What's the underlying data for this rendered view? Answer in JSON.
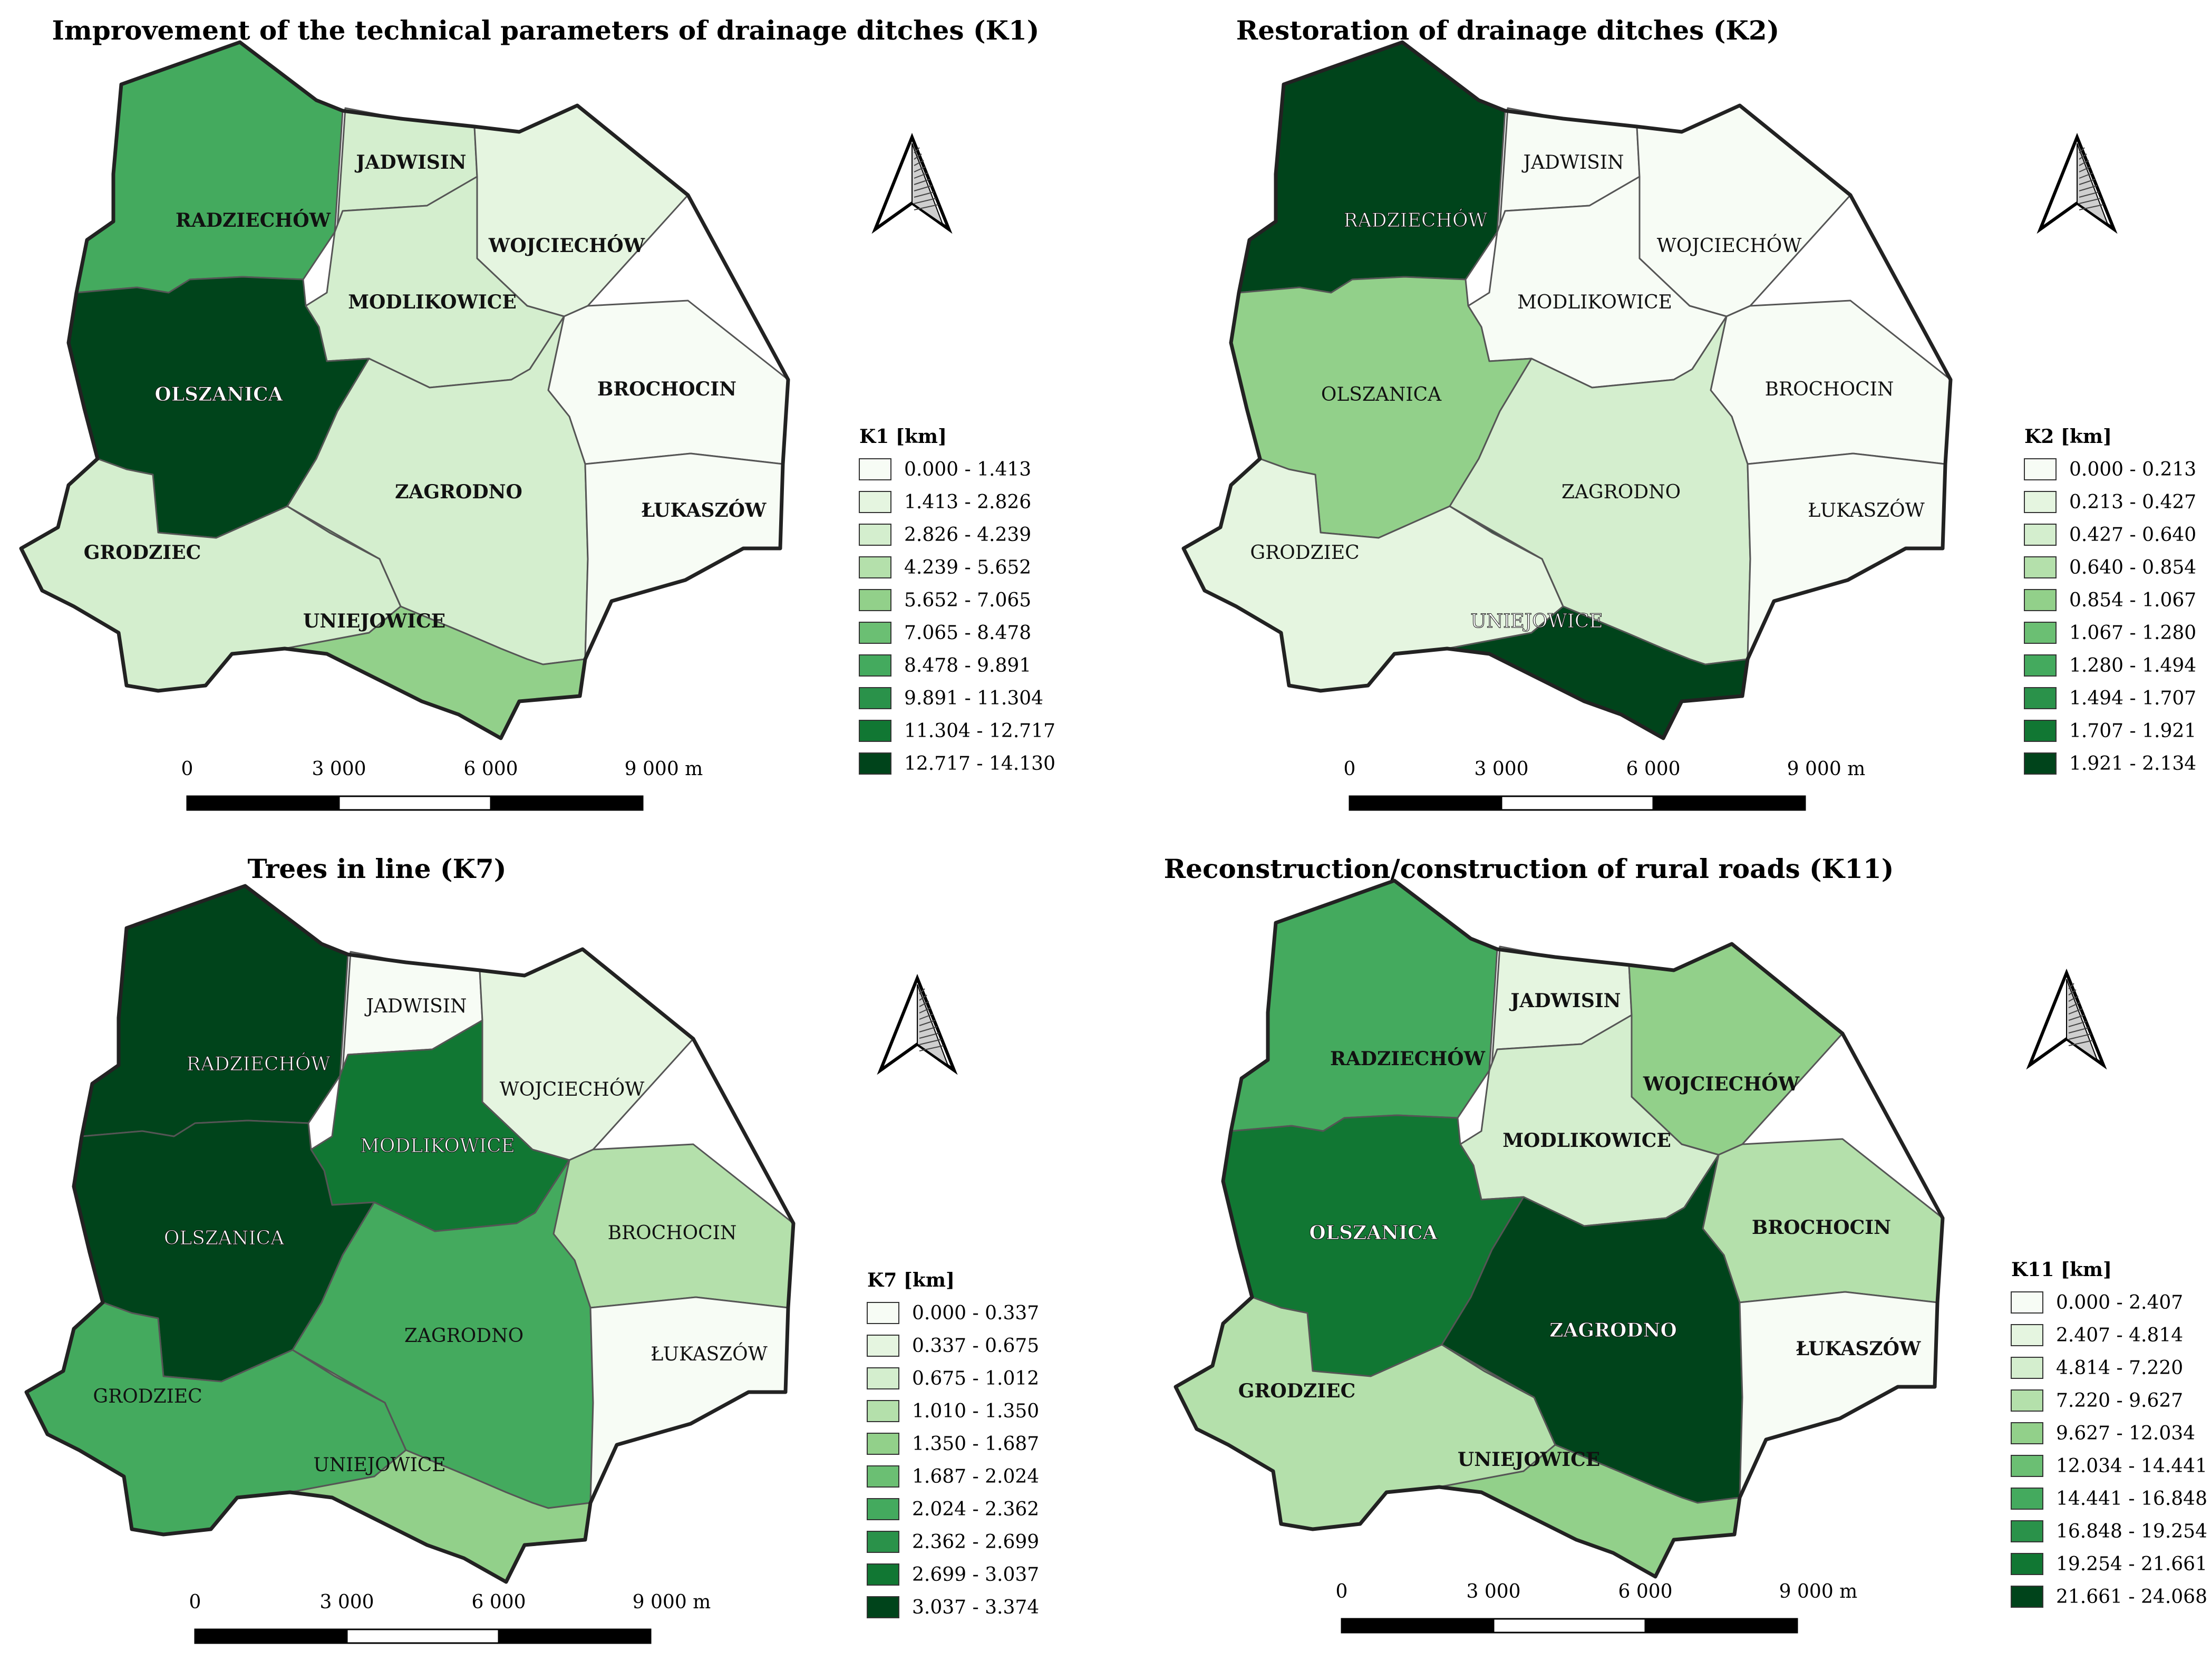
{
  "panels": [
    {
      "id": "k1",
      "title": "Improvement of the technical parameters of drainage ditches (K1)",
      "legend_title": "K1 [km]",
      "classes": [
        "0.000 - 1.413",
        "1.413 - 2.826",
        "2.826 - 4.239",
        "4.239 - 5.652",
        "5.652 - 7.065",
        "7.065 - 8.478",
        "8.478 - 9.891",
        "9.891 - 11.304",
        "11.304 - 12.717",
        "12.717 - 14.130"
      ],
      "region_class": {
        "radziechow": 6,
        "jadwisin": 2,
        "wojciechow": 1,
        "modlikowice": 2,
        "olszanica": 9,
        "brochocin": 0,
        "zagrodno": 2,
        "lukaszow": 0,
        "grodziec": 2,
        "uniejowice": 4
      },
      "label_bold": true,
      "scale": {
        "labels": [
          "0",
          "3 000",
          "6 000",
          "9 000 m"
        ]
      }
    },
    {
      "id": "k2",
      "title": "Restoration of drainage ditches (K2)",
      "legend_title": "K2 [km]",
      "classes": [
        "0.000 - 0.213",
        "0.213 - 0.427",
        "0.427 - 0.640",
        "0.640 - 0.854",
        "0.854 - 1.067",
        "1.067 - 1.280",
        "1.280 - 1.494",
        "1.494 - 1.707",
        "1.707 - 1.921",
        "1.921 - 2.134"
      ],
      "region_class": {
        "radziechow": 9,
        "jadwisin": 0,
        "wojciechow": 0,
        "modlikowice": 0,
        "olszanica": 4,
        "brochocin": 0,
        "zagrodno": 2,
        "lukaszow": 0,
        "grodziec": 1,
        "uniejowice": 9
      },
      "label_bold": false,
      "scale": {
        "labels": [
          "0",
          "3 000",
          "6 000",
          "9 000 m"
        ]
      }
    },
    {
      "id": "k7",
      "title": "Trees in line (K7)",
      "legend_title": "K7 [km]",
      "classes": [
        "0.000 - 0.337",
        "0.337 - 0.675",
        "0.675 - 1.012",
        "1.010 - 1.350",
        "1.350 - 1.687",
        "1.687 - 2.024",
        "2.024 - 2.362",
        "2.362 - 2.699",
        "2.699 - 3.037",
        "3.037 - 3.374"
      ],
      "region_class": {
        "radziechow": 9,
        "jadwisin": 0,
        "wojciechow": 1,
        "modlikowice": 8,
        "olszanica": 9,
        "brochocin": 3,
        "zagrodno": 6,
        "lukaszow": 0,
        "grodziec": 6,
        "uniejowice": 4
      },
      "label_bold": false,
      "scale": {
        "labels": [
          "0",
          "3 000",
          "6 000",
          "9 000 m"
        ]
      }
    },
    {
      "id": "k11",
      "title": "Reconstruction/construction of rural roads (K11)",
      "legend_title": "K11 [km]",
      "classes": [
        "0.000 - 2.407",
        "2.407 - 4.814",
        "4.814 - 7.220",
        "7.220 - 9.627",
        "9.627 - 12.034",
        "12.034 - 14.441",
        "14.441 - 16.848",
        "16.848 - 19.254",
        "19.254 - 21.661",
        "21.661 - 24.068"
      ],
      "region_class": {
        "radziechow": 6,
        "jadwisin": 1,
        "wojciechow": 4,
        "modlikowice": 2,
        "olszanica": 8,
        "brochocin": 3,
        "zagrodno": 9,
        "lukaszow": 0,
        "grodziec": 3,
        "uniejowice": 4
      },
      "label_bold": true,
      "scale": {
        "labels": [
          "0",
          "3 000",
          "6 000",
          "9 000 m"
        ]
      }
    }
  ],
  "region_names": {
    "radziechow": "RADZIECHÓW",
    "jadwisin": "JADWISIN",
    "wojciechow": "WOJCIECHÓW",
    "modlikowice": "MODLIKOWICE",
    "olszanica": "OLSZANICA",
    "brochocin": "BROCHOCIN",
    "zagrodno": "ZAGRODNO",
    "lukaszow": "ŁUKASZÓW",
    "grodziec": "GRODZIEC",
    "uniejowice": "UNIEJOWICE"
  },
  "palette": [
    "#f7fcf5",
    "#e5f5e0",
    "#d4eece",
    "#b4e0ab",
    "#92d08a",
    "#6bbf73",
    "#44aa5e",
    "#2a924a",
    "#117733",
    "#00441b"
  ],
  "outline_color": "#222222",
  "north_arrow": "north-arrow-icon"
}
